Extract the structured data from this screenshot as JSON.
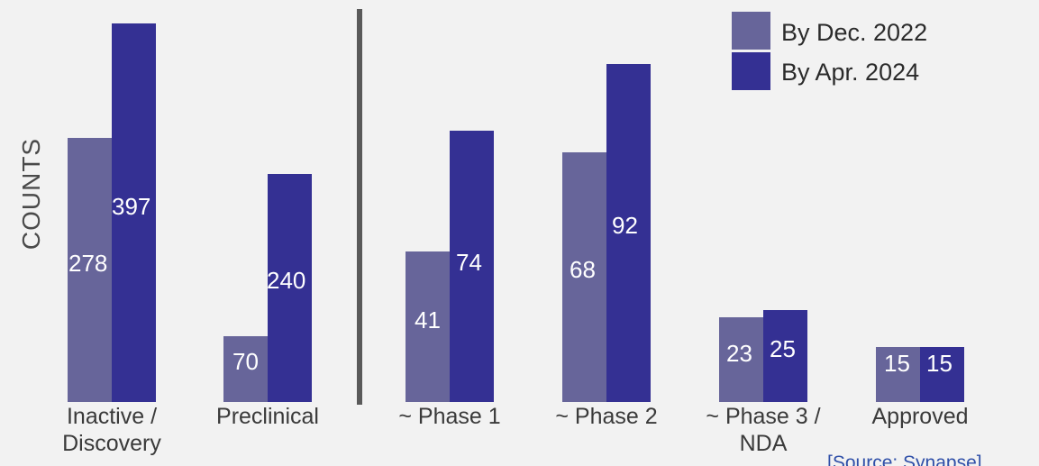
{
  "chart_data": {
    "type": "bar",
    "title": "",
    "xlabel": "",
    "ylabel": "COUNTS",
    "categories": [
      [
        "Inactive /",
        "Discovery"
      ],
      [
        "Preclinical"
      ],
      [
        "~ Phase 1"
      ],
      [
        "~ Phase 2"
      ],
      [
        "~ Phase 3 /",
        "NDA"
      ],
      [
        "Approved"
      ]
    ],
    "series": [
      {
        "name": "By Dec. 2022",
        "color": "#67659a",
        "values": [
          278,
          70,
          41,
          68,
          23,
          15
        ]
      },
      {
        "name": "By Apr. 2024",
        "color": "#343093",
        "values": [
          397,
          240,
          74,
          92,
          25,
          15
        ]
      }
    ],
    "scale": "per-category (bar heights not on a common linear scale)",
    "divider_after_category": 1,
    "legend_position": "top-right",
    "grid": false,
    "source": "[Source: Synapse]"
  }
}
